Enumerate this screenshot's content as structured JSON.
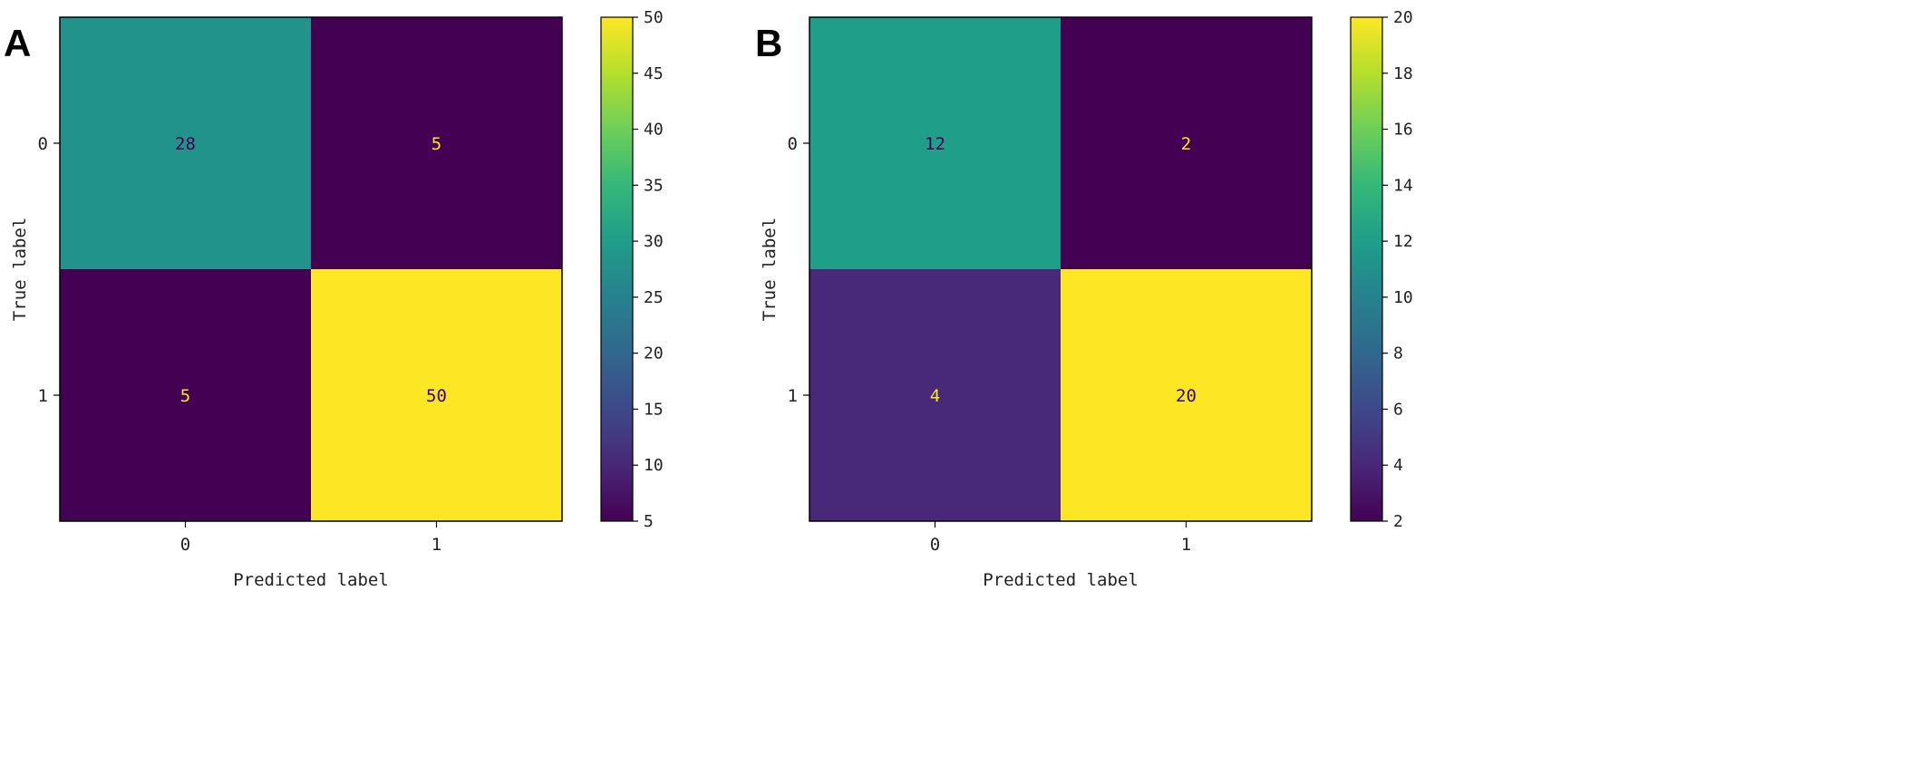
{
  "chart_data": [
    {
      "type": "heatmap",
      "panel": "A",
      "xlabel": "Predicted label",
      "ylabel": "True label",
      "x_categories": [
        "0",
        "1"
      ],
      "y_categories": [
        "0",
        "1"
      ],
      "values": [
        [
          28,
          5
        ],
        [
          5,
          50
        ]
      ],
      "colormap": "viridis",
      "colorbar": {
        "min": 5,
        "max": 50,
        "ticks": [
          5,
          10,
          15,
          20,
          25,
          30,
          35,
          40,
          45,
          50
        ]
      },
      "grid": false
    },
    {
      "type": "heatmap",
      "panel": "B",
      "xlabel": "Predicted label",
      "ylabel": "True label",
      "x_categories": [
        "0",
        "1"
      ],
      "y_categories": [
        "0",
        "1"
      ],
      "values": [
        [
          12,
          2
        ],
        [
          4,
          20
        ]
      ],
      "colormap": "viridis",
      "colorbar": {
        "min": 2,
        "max": 20,
        "ticks": [
          2,
          4,
          6,
          8,
          10,
          12,
          14,
          16,
          18,
          20
        ]
      },
      "grid": false
    }
  ],
  "colors": {
    "viridis": [
      "#440154",
      "#482878",
      "#3e4989",
      "#31688e",
      "#26828e",
      "#1f9e89",
      "#35b779",
      "#6ece58",
      "#b5de2b",
      "#fde725"
    ],
    "text_on_dark": "#fde725",
    "text_on_light": "#440154"
  }
}
